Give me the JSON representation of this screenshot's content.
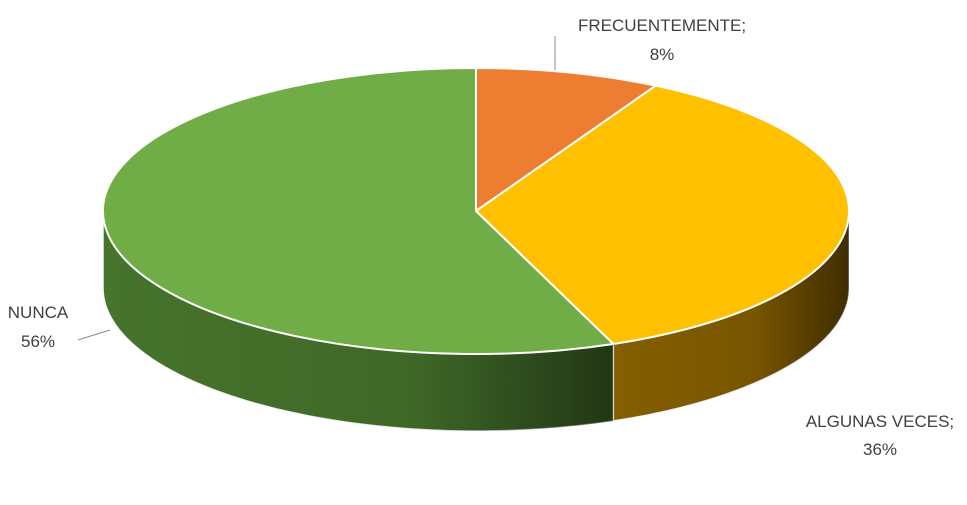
{
  "chart_data": {
    "type": "pie",
    "variant": "3d",
    "series": [
      {
        "slices": [
          {
            "label": "FRECUENTEMENTE",
            "value": 8,
            "display_label": "FRECUENTEMENTE;",
            "display_value": "8%",
            "color": "#ED7D31",
            "side_color": "#7A3A10"
          },
          {
            "label": "ALGUNAS VECES",
            "value": 36,
            "display_label": "ALGUNAS VECES;",
            "display_value": "36%",
            "color": "#FFC000",
            "side_color": "#8C6400"
          },
          {
            "label": "NUNCA",
            "value": 56,
            "display_label": "NUNCA",
            "display_value": "56%",
            "color": "#70AD47",
            "side_color": "#4A7A2E"
          }
        ]
      }
    ],
    "start_angle_deg": 0,
    "direction": "clockwise",
    "legend": "none",
    "data_labels": "outside"
  }
}
